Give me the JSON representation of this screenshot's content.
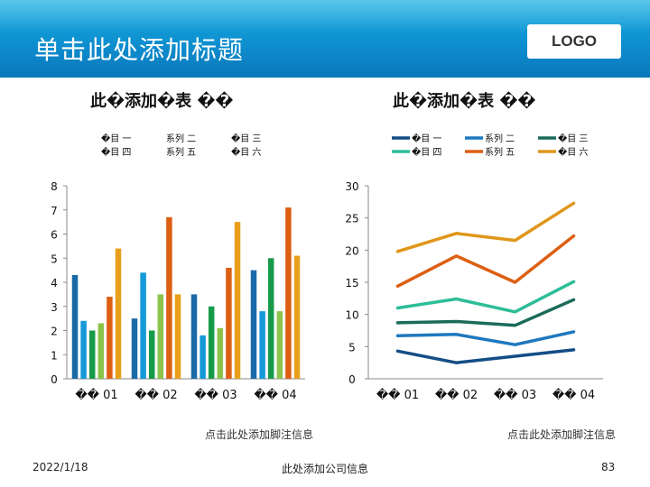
{
  "slide": {
    "title": "单击此处添加标题",
    "logo": "LOGO",
    "date": "2022/1/18",
    "company": "此处添加公司信息",
    "page_number": "83"
  },
  "colors": {
    "header": "#0e8fcf",
    "series": [
      "#1b6aa8",
      "#1599d8",
      "#179a4a",
      "#8cc34a",
      "#dd5f12",
      "#e8a01c"
    ],
    "line_series": [
      "#144d86",
      "#1e78bf",
      "#1a6b5a",
      "#2dbd99",
      "#dd5f12",
      "#e0961a"
    ]
  },
  "chart_data": [
    {
      "type": "bar",
      "title": "此�添加�表 ��",
      "note": "点击此处添加脚注信息",
      "categories": [
        "�� 01",
        "�� 02",
        "�� 03",
        "�� 04"
      ],
      "ylim": [
        0,
        8
      ],
      "yticks": [
        "0",
        "1",
        "2",
        "3",
        "4",
        "5",
        "6",
        "7",
        "8"
      ],
      "grid": false,
      "legend_position": "top",
      "series": [
        {
          "name": "�目 一",
          "values": [
            4.3,
            2.5,
            3.5,
            4.5
          ]
        },
        {
          "name": "系列 二",
          "values": [
            2.4,
            4.4,
            1.8,
            2.8
          ]
        },
        {
          "name": "�目 三",
          "values": [
            2.0,
            2.0,
            3.0,
            5.0
          ]
        },
        {
          "name": "�目 四",
          "values": [
            2.3,
            3.5,
            2.1,
            2.8
          ]
        },
        {
          "name": "系列 五",
          "values": [
            3.4,
            6.7,
            4.6,
            7.1
          ]
        },
        {
          "name": "�目 六",
          "values": [
            5.4,
            3.5,
            6.5,
            5.1
          ]
        }
      ]
    },
    {
      "type": "line",
      "title": "此�添加�表 ��",
      "note": "点击此处添加脚注信息",
      "categories": [
        "�� 01",
        "�� 02",
        "�� 03",
        "�� 04"
      ],
      "ylim": [
        0,
        30
      ],
      "yticks": [
        "0",
        "5",
        "10",
        "15",
        "20",
        "25",
        "30"
      ],
      "grid": false,
      "legend_position": "top",
      "series": [
        {
          "name": "�目 一",
          "values": [
            4.3,
            2.5,
            3.5,
            4.5
          ]
        },
        {
          "name": "系列 二",
          "values": [
            6.7,
            6.9,
            5.3,
            7.3
          ]
        },
        {
          "name": "�目 三",
          "values": [
            8.7,
            8.9,
            8.3,
            12.3
          ]
        },
        {
          "name": "�目 四",
          "values": [
            11.0,
            12.4,
            10.4,
            15.1
          ]
        },
        {
          "name": "系列 五",
          "values": [
            14.4,
            19.1,
            15.0,
            22.2
          ]
        },
        {
          "name": "�目 六",
          "values": [
            19.8,
            22.6,
            21.5,
            27.3
          ]
        }
      ]
    }
  ]
}
